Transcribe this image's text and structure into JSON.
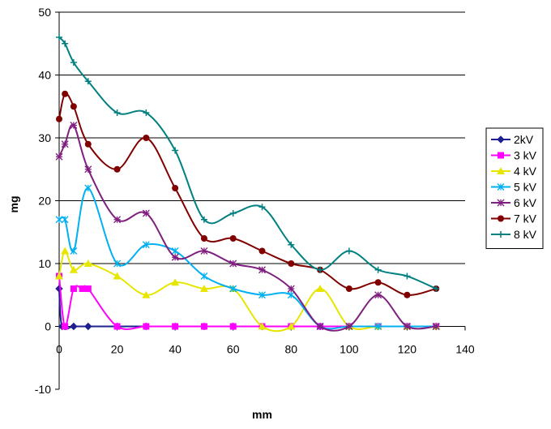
{
  "chart_data": {
    "type": "line",
    "xlabel": "mm",
    "ylabel": "mg",
    "xlim": [
      0,
      140
    ],
    "ylim": [
      -10,
      50
    ],
    "x_ticks": [
      "0",
      "20",
      "40",
      "60",
      "80",
      "100",
      "120",
      "140"
    ],
    "y_ticks": [
      "-10",
      "0",
      "10",
      "20",
      "30",
      "40",
      "50"
    ],
    "grid": "horizontal",
    "legend_position": "right",
    "series": [
      {
        "name": "2kV",
        "color": "#1f1f8f",
        "marker": "diamond",
        "points": [
          [
            0,
            6
          ],
          [
            1,
            0
          ],
          [
            5,
            0
          ],
          [
            10,
            0
          ],
          [
            20,
            0
          ],
          [
            30,
            0
          ],
          [
            40,
            0
          ],
          [
            50,
            0
          ],
          [
            60,
            0
          ],
          [
            70,
            0
          ],
          [
            80,
            0
          ],
          [
            90,
            0
          ],
          [
            100,
            0
          ],
          [
            110,
            0
          ],
          [
            120,
            0
          ],
          [
            130,
            0
          ]
        ]
      },
      {
        "name": "3 kV",
        "color": "#ff00ff",
        "marker": "square",
        "points": [
          [
            0,
            8
          ],
          [
            2,
            0
          ],
          [
            5,
            6
          ],
          [
            8,
            6
          ],
          [
            10,
            6
          ],
          [
            20,
            0
          ],
          [
            30,
            0
          ],
          [
            40,
            0
          ],
          [
            50,
            0
          ],
          [
            60,
            0
          ],
          [
            70,
            0
          ],
          [
            80,
            0
          ],
          [
            90,
            0
          ],
          [
            100,
            0
          ],
          [
            110,
            0
          ],
          [
            120,
            0
          ],
          [
            130,
            0
          ]
        ]
      },
      {
        "name": "4 kV",
        "color": "#e6e600",
        "marker": "triangle",
        "points": [
          [
            0,
            8
          ],
          [
            2,
            12
          ],
          [
            5,
            9
          ],
          [
            10,
            10
          ],
          [
            20,
            8
          ],
          [
            30,
            5
          ],
          [
            40,
            7
          ],
          [
            50,
            6
          ],
          [
            60,
            6
          ],
          [
            70,
            0
          ],
          [
            80,
            0
          ],
          [
            90,
            6
          ],
          [
            100,
            0
          ],
          [
            110,
            0
          ],
          [
            120,
            0
          ],
          [
            130,
            0
          ]
        ]
      },
      {
        "name": "5 kV",
        "color": "#00b0f0",
        "marker": "star",
        "points": [
          [
            0,
            17
          ],
          [
            2,
            17
          ],
          [
            5,
            12
          ],
          [
            10,
            22
          ],
          [
            20,
            10
          ],
          [
            30,
            13
          ],
          [
            40,
            12
          ],
          [
            50,
            8
          ],
          [
            60,
            6
          ],
          [
            70,
            5
          ],
          [
            80,
            5
          ],
          [
            90,
            0
          ],
          [
            100,
            0
          ],
          [
            110,
            0
          ],
          [
            120,
            0
          ],
          [
            130,
            0
          ]
        ]
      },
      {
        "name": "6 kV",
        "color": "#7f1f7f",
        "marker": "asterisk",
        "points": [
          [
            0,
            27
          ],
          [
            2,
            29
          ],
          [
            5,
            32
          ],
          [
            10,
            25
          ],
          [
            20,
            17
          ],
          [
            30,
            18
          ],
          [
            40,
            11
          ],
          [
            50,
            12
          ],
          [
            60,
            10
          ],
          [
            70,
            9
          ],
          [
            80,
            6
          ],
          [
            90,
            0
          ],
          [
            100,
            0
          ],
          [
            110,
            5
          ],
          [
            120,
            0
          ],
          [
            130,
            0
          ]
        ]
      },
      {
        "name": "7 kV",
        "color": "#800000",
        "marker": "circle",
        "points": [
          [
            0,
            33
          ],
          [
            2,
            37
          ],
          [
            5,
            35
          ],
          [
            10,
            29
          ],
          [
            20,
            25
          ],
          [
            30,
            30
          ],
          [
            40,
            22
          ],
          [
            50,
            14
          ],
          [
            60,
            14
          ],
          [
            70,
            12
          ],
          [
            80,
            10
          ],
          [
            90,
            9
          ],
          [
            100,
            6
          ],
          [
            110,
            7
          ],
          [
            120,
            5
          ],
          [
            130,
            6
          ]
        ]
      },
      {
        "name": "8 kV",
        "color": "#008080",
        "marker": "plus",
        "points": [
          [
            0,
            46
          ],
          [
            2,
            45
          ],
          [
            5,
            42
          ],
          [
            10,
            39
          ],
          [
            20,
            34
          ],
          [
            30,
            34
          ],
          [
            40,
            28
          ],
          [
            50,
            17
          ],
          [
            60,
            18
          ],
          [
            70,
            19
          ],
          [
            80,
            13
          ],
          [
            90,
            9
          ],
          [
            100,
            12
          ],
          [
            110,
            9
          ],
          [
            120,
            8
          ],
          [
            130,
            6
          ]
        ]
      }
    ]
  }
}
